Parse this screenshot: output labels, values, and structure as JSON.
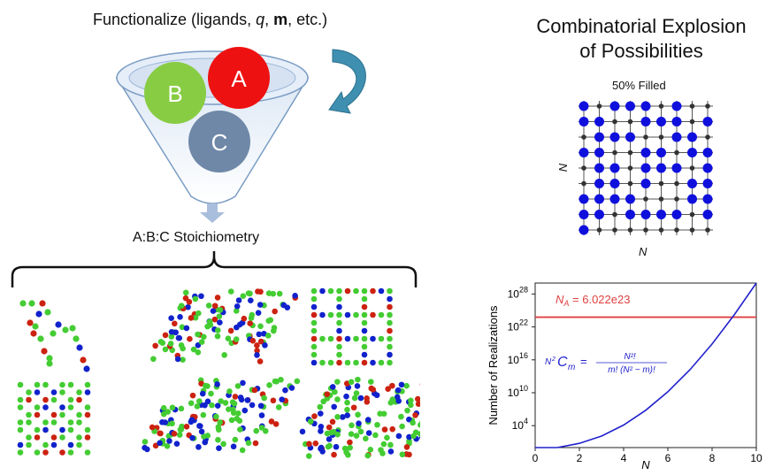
{
  "left_panel": {
    "funnel_title_prefix": "Functionalize (ligands, ",
    "funnel_title_q": "q",
    "funnel_title_sep": ", ",
    "funnel_title_m": "m",
    "funnel_title_suffix": ", etc.)",
    "circles": [
      {
        "label": "A",
        "color": "#ee1111"
      },
      {
        "label": "B",
        "color": "#88cc44"
      },
      {
        "label": "C",
        "color": "#6f88a8"
      }
    ],
    "stoichiometry_label": "A:B:C Stoichiometry",
    "atom_colors": {
      "green": "#44cc33",
      "blue": "#1122cc",
      "red": "#cc2211"
    }
  },
  "right_panel": {
    "title_line1": "Combinatorial Explosion",
    "title_line2": "of Possibilities",
    "grid_title": "50% Filled",
    "grid_axis_label": "N",
    "grid_size": 9,
    "grid_filled_fraction": 0.5,
    "grid_colors": {
      "filled": "#1010dd",
      "empty": "#333333"
    }
  },
  "chart_data": {
    "type": "line",
    "title": "",
    "xlabel": "N",
    "ylabel": "Number of Realizations",
    "xlim": [
      0,
      10
    ],
    "ylim_log10": [
      0,
      30
    ],
    "y_scale": "log",
    "x_ticks": [
      "0",
      "2",
      "4",
      "6",
      "8",
      "10"
    ],
    "y_tick_exponents": [
      4,
      10,
      16,
      22,
      28
    ],
    "y_tick_base": "10",
    "hline": {
      "label": "N_A = 6.022e23",
      "label_main": "N",
      "label_sub": "A",
      "label_rest": " = 6.022e23",
      "log10_value": 23.78,
      "color": "#e04040"
    },
    "formula": {
      "lhs_sup": "N",
      "lhs_exp": "2",
      "lhs_main": "C",
      "lhs_sub": "m",
      "equals": "=",
      "numerator": "N²!",
      "denominator": "m! (N² − m)!",
      "color": "#2222cc"
    },
    "series": [
      {
        "color": "#2222cc",
        "x": [
          0,
          1,
          2,
          3,
          4,
          5,
          6,
          7,
          8,
          9,
          10
        ],
        "log10_y": [
          0.0,
          0.0,
          0.78,
          2.1,
          4.11,
          6.8,
          10.17,
          14.2,
          18.88,
          24.2,
          30.0
        ]
      }
    ]
  }
}
